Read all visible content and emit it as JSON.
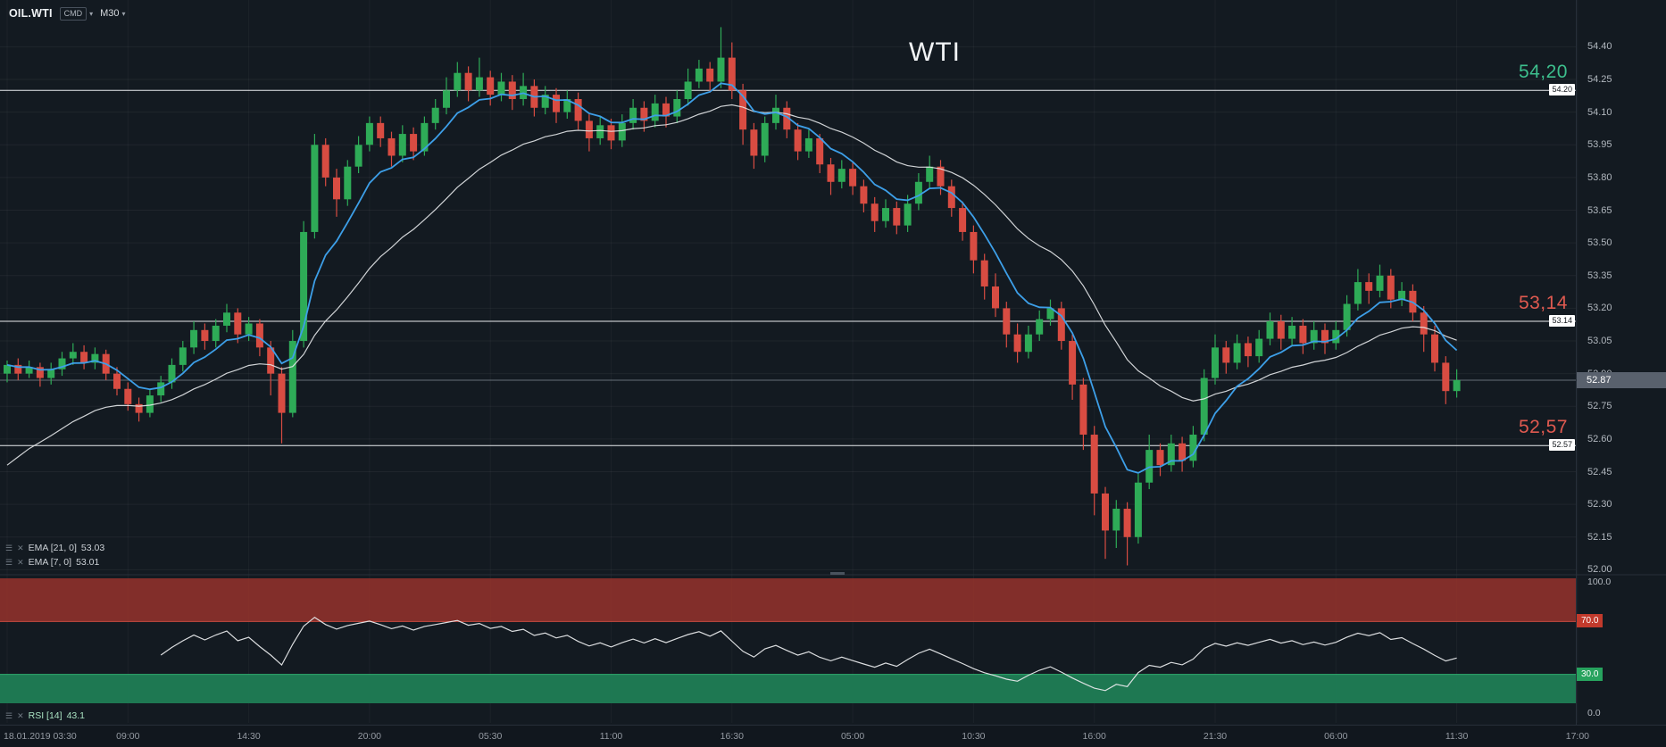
{
  "instrument": {
    "symbol": "OIL.WTI",
    "provider": "CMD",
    "timeframe": "M30"
  },
  "title": "WTI",
  "levels": [
    {
      "price": 54.2,
      "display": "54,20",
      "tag": "54.20",
      "color": "#3dbf8d"
    },
    {
      "price": 53.14,
      "display": "53,14",
      "tag": "53.14",
      "color": "#e05a50"
    },
    {
      "price": 52.57,
      "display": "52,57",
      "tag": "52.57",
      "color": "#e05a50"
    }
  ],
  "current_price": {
    "display": "52.87",
    "value": 52.87
  },
  "indicators": {
    "ema_slow": {
      "label": "EMA [21, 0]",
      "value": "53.03",
      "period": 21
    },
    "ema_fast": {
      "label": "EMA [7, 0]",
      "value": "53.01",
      "period": 7
    },
    "rsi": {
      "label": "RSI [14]",
      "value": "43.1",
      "period": 14
    }
  },
  "rsi_axis": {
    "top": "100.0",
    "overbought": "70.0",
    "oversold": "30.0",
    "bottom": "0.0"
  },
  "chart_data": {
    "type": "candlestick",
    "symbol": "OIL.WTI",
    "timeframe": "M30",
    "title": "WTI",
    "y_axis": {
      "min": 52.0,
      "max": 54.4,
      "tick_step": 0.15
    },
    "x_labels": [
      "18.01.2019 03:30",
      "09:00",
      "14:30",
      "20:00",
      "05:30",
      "11:00",
      "16:30",
      "05:00",
      "10:30",
      "16:00",
      "21:30",
      "06:00",
      "11:30",
      "17:00"
    ],
    "candles_per_label": 11,
    "levels": [
      54.2,
      53.14,
      52.57
    ],
    "current_price": 52.87,
    "ema_fast_period": 7,
    "ema_slow_period": 21,
    "rsi_panel": {
      "period": 14,
      "range": [
        0,
        100
      ],
      "overbought": 70,
      "oversold": 30,
      "current": 43.1
    },
    "colors": {
      "background": "#131a21",
      "up": "#2eab57",
      "down": "#d84c42",
      "ema_fast": "#3d9fe8",
      "ema_slow": "#e6e8ea",
      "rsi_line": "#e6e8ea",
      "overbought_fill": "#96322c",
      "oversold_fill": "#1f7d55",
      "level_line": "#e8eaed",
      "accent_green": "#3dbf8d",
      "accent_red": "#e05a50"
    },
    "candles": [
      [
        52.9,
        52.96,
        52.86,
        52.94
      ],
      [
        52.94,
        52.97,
        52.87,
        52.9
      ],
      [
        52.9,
        52.96,
        52.88,
        52.93
      ],
      [
        52.93,
        52.95,
        52.84,
        52.88
      ],
      [
        52.88,
        52.95,
        52.85,
        52.92
      ],
      [
        52.92,
        53.0,
        52.89,
        52.97
      ],
      [
        52.97,
        53.04,
        52.94,
        53.0
      ],
      [
        53.0,
        53.03,
        52.92,
        52.95
      ],
      [
        52.95,
        53.02,
        52.92,
        52.99
      ],
      [
        52.99,
        53.01,
        52.87,
        52.9
      ],
      [
        52.9,
        52.93,
        52.8,
        52.83
      ],
      [
        52.83,
        52.86,
        52.73,
        52.76
      ],
      [
        52.76,
        52.79,
        52.68,
        52.72
      ],
      [
        52.72,
        52.83,
        52.7,
        52.8
      ],
      [
        52.8,
        52.89,
        52.77,
        52.86
      ],
      [
        52.86,
        52.97,
        52.83,
        52.94
      ],
      [
        52.94,
        53.05,
        52.91,
        53.02
      ],
      [
        53.02,
        53.14,
        52.99,
        53.1
      ],
      [
        53.1,
        53.13,
        53.01,
        53.05
      ],
      [
        53.05,
        53.15,
        53.02,
        53.12
      ],
      [
        53.12,
        53.22,
        53.09,
        53.18
      ],
      [
        53.18,
        53.2,
        53.04,
        53.08
      ],
      [
        53.08,
        53.16,
        53.05,
        53.13
      ],
      [
        53.13,
        53.15,
        52.98,
        53.02
      ],
      [
        53.02,
        53.05,
        52.8,
        52.9
      ],
      [
        52.9,
        52.93,
        52.58,
        52.72
      ],
      [
        52.72,
        53.1,
        52.7,
        53.05
      ],
      [
        53.05,
        53.6,
        53.02,
        53.55
      ],
      [
        53.55,
        54.0,
        53.52,
        53.95
      ],
      [
        53.95,
        53.98,
        53.76,
        53.8
      ],
      [
        53.8,
        53.84,
        53.62,
        53.7
      ],
      [
        53.7,
        53.88,
        53.67,
        53.85
      ],
      [
        53.85,
        53.99,
        53.82,
        53.95
      ],
      [
        53.95,
        54.08,
        53.92,
        54.05
      ],
      [
        54.05,
        54.08,
        53.94,
        53.98
      ],
      [
        53.98,
        54.01,
        53.85,
        53.9
      ],
      [
        53.9,
        54.04,
        53.87,
        54.0
      ],
      [
        54.0,
        54.03,
        53.88,
        53.92
      ],
      [
        53.92,
        54.08,
        53.9,
        54.05
      ],
      [
        54.05,
        54.16,
        54.02,
        54.12
      ],
      [
        54.12,
        54.26,
        54.09,
        54.2
      ],
      [
        54.2,
        54.33,
        54.17,
        54.28
      ],
      [
        54.28,
        54.31,
        54.15,
        54.2
      ],
      [
        54.2,
        54.35,
        54.17,
        54.26
      ],
      [
        54.26,
        54.29,
        54.13,
        54.18
      ],
      [
        54.18,
        54.28,
        54.15,
        54.24
      ],
      [
        54.24,
        54.27,
        54.11,
        54.16
      ],
      [
        54.16,
        54.28,
        54.13,
        54.22
      ],
      [
        54.22,
        54.25,
        54.08,
        54.12
      ],
      [
        54.12,
        54.22,
        54.09,
        54.18
      ],
      [
        54.18,
        54.21,
        54.05,
        54.1
      ],
      [
        54.1,
        54.2,
        54.07,
        54.16
      ],
      [
        54.16,
        54.19,
        54.02,
        54.06
      ],
      [
        54.06,
        54.09,
        53.92,
        53.98
      ],
      [
        53.98,
        54.08,
        53.95,
        54.04
      ],
      [
        54.04,
        54.07,
        53.93,
        53.97
      ],
      [
        53.97,
        54.09,
        53.94,
        54.05
      ],
      [
        54.05,
        54.16,
        54.02,
        54.12
      ],
      [
        54.12,
        54.15,
        54.01,
        54.06
      ],
      [
        54.06,
        54.18,
        54.03,
        54.14
      ],
      [
        54.14,
        54.17,
        54.03,
        54.08
      ],
      [
        54.08,
        54.2,
        54.05,
        54.16
      ],
      [
        54.16,
        54.3,
        54.13,
        54.24
      ],
      [
        54.24,
        54.34,
        54.21,
        54.3
      ],
      [
        54.3,
        54.33,
        54.19,
        54.24
      ],
      [
        54.24,
        54.49,
        54.21,
        54.35
      ],
      [
        54.35,
        54.42,
        54.16,
        54.2
      ],
      [
        54.2,
        54.23,
        53.95,
        54.02
      ],
      [
        54.02,
        54.05,
        53.84,
        53.9
      ],
      [
        53.9,
        54.08,
        53.87,
        54.05
      ],
      [
        54.05,
        54.18,
        54.02,
        54.12
      ],
      [
        54.12,
        54.15,
        53.98,
        54.02
      ],
      [
        54.02,
        54.05,
        53.88,
        53.92
      ],
      [
        53.92,
        54.02,
        53.89,
        53.98
      ],
      [
        53.98,
        54.0,
        53.82,
        53.86
      ],
      [
        53.86,
        53.89,
        53.72,
        53.78
      ],
      [
        53.78,
        53.88,
        53.75,
        53.84
      ],
      [
        53.84,
        53.87,
        53.72,
        53.76
      ],
      [
        53.76,
        53.79,
        53.64,
        53.68
      ],
      [
        53.68,
        53.71,
        53.55,
        53.6
      ],
      [
        53.6,
        53.7,
        53.57,
        53.66
      ],
      [
        53.66,
        53.69,
        53.54,
        53.58
      ],
      [
        53.58,
        53.72,
        53.55,
        53.68
      ],
      [
        53.68,
        53.82,
        53.65,
        53.78
      ],
      [
        53.78,
        53.9,
        53.75,
        53.85
      ],
      [
        53.85,
        53.88,
        53.72,
        53.76
      ],
      [
        53.76,
        53.79,
        53.62,
        53.66
      ],
      [
        53.66,
        53.69,
        53.51,
        53.55
      ],
      [
        53.55,
        53.58,
        53.36,
        53.42
      ],
      [
        53.42,
        53.45,
        53.24,
        53.3
      ],
      [
        53.3,
        53.36,
        53.16,
        53.2
      ],
      [
        53.2,
        53.23,
        53.02,
        53.08
      ],
      [
        53.08,
        53.13,
        52.95,
        53.0
      ],
      [
        53.0,
        53.12,
        52.97,
        53.08
      ],
      [
        53.08,
        53.19,
        53.05,
        53.15
      ],
      [
        53.15,
        53.24,
        53.12,
        53.2
      ],
      [
        53.2,
        53.23,
        53.01,
        53.05
      ],
      [
        53.05,
        53.08,
        52.78,
        52.85
      ],
      [
        52.85,
        52.88,
        52.55,
        52.62
      ],
      [
        52.62,
        52.66,
        52.25,
        52.35
      ],
      [
        52.35,
        52.38,
        52.05,
        52.18
      ],
      [
        52.18,
        52.32,
        52.1,
        52.28
      ],
      [
        52.28,
        52.31,
        52.02,
        52.15
      ],
      [
        52.15,
        52.44,
        52.12,
        52.4
      ],
      [
        52.4,
        52.62,
        52.37,
        52.55
      ],
      [
        52.55,
        52.58,
        52.43,
        52.48
      ],
      [
        52.48,
        52.62,
        52.45,
        52.58
      ],
      [
        52.58,
        52.61,
        52.45,
        52.5
      ],
      [
        52.5,
        52.66,
        52.47,
        52.62
      ],
      [
        52.62,
        52.92,
        52.59,
        52.88
      ],
      [
        52.88,
        53.08,
        52.85,
        53.02
      ],
      [
        53.02,
        53.05,
        52.9,
        52.95
      ],
      [
        52.95,
        53.08,
        52.92,
        53.04
      ],
      [
        53.04,
        53.07,
        52.93,
        52.98
      ],
      [
        52.98,
        53.1,
        52.95,
        53.06
      ],
      [
        53.06,
        53.18,
        53.03,
        53.14
      ],
      [
        53.14,
        53.17,
        53.01,
        53.06
      ],
      [
        53.06,
        53.16,
        53.03,
        53.12
      ],
      [
        53.12,
        53.15,
        52.99,
        53.04
      ],
      [
        53.04,
        53.14,
        53.01,
        53.1
      ],
      [
        53.1,
        53.13,
        52.99,
        53.04
      ],
      [
        53.04,
        53.14,
        53.01,
        53.1
      ],
      [
        53.1,
        53.26,
        53.07,
        53.22
      ],
      [
        53.22,
        53.38,
        53.19,
        53.32
      ],
      [
        53.32,
        53.36,
        53.22,
        53.28
      ],
      [
        53.28,
        53.4,
        53.25,
        53.35
      ],
      [
        53.35,
        53.38,
        53.2,
        53.24
      ],
      [
        53.24,
        53.32,
        53.21,
        53.28
      ],
      [
        53.28,
        53.31,
        53.14,
        53.18
      ],
      [
        53.18,
        53.21,
        53.0,
        53.08
      ],
      [
        53.08,
        53.12,
        52.91,
        52.95
      ],
      [
        52.95,
        52.98,
        52.76,
        52.82
      ],
      [
        52.82,
        52.92,
        52.79,
        52.87
      ]
    ]
  }
}
